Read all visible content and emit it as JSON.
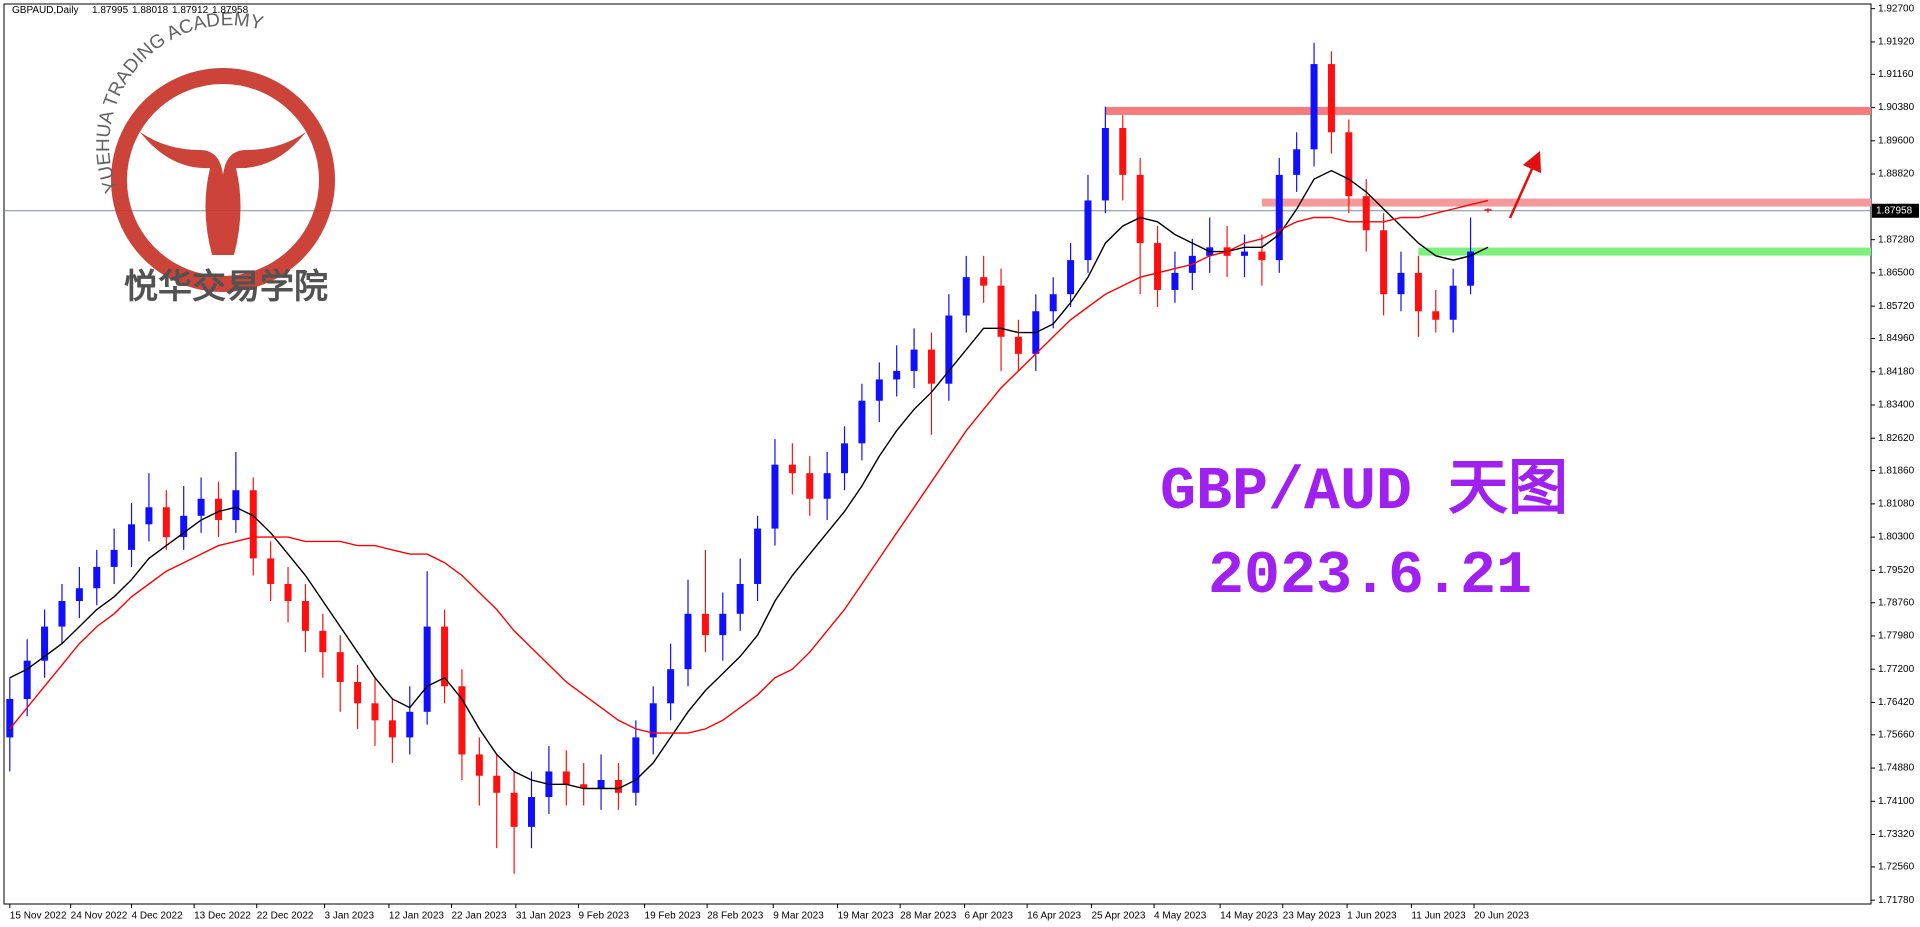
{
  "chart_data": {
    "type": "candlestick",
    "header": {
      "symbol": "GBPAUD,Daily"
    },
    "annotations": [
      "GBP/AUD 天图",
      "2023.6.21"
    ],
    "logo": {
      "name_en": "YUEHUA TRADING ACADEMY",
      "name_cn": "悦华交易学院"
    },
    "up_color": "#1010ff",
    "down_color": "#ff1010",
    "open": [
      1.756,
      1.765,
      1.774,
      1.782,
      1.788,
      1.791,
      1.796,
      1.8,
      1.806,
      1.81,
      1.803,
      1.808,
      1.812,
      1.807,
      1.814,
      1.798,
      1.792,
      1.788,
      1.781,
      1.776,
      1.769,
      1.764,
      1.76,
      1.756,
      1.762,
      1.782,
      1.768,
      1.752,
      1.747,
      1.743,
      1.735,
      1.742,
      1.748,
      1.745,
      1.744,
      1.746,
      1.743,
      1.756,
      1.764,
      1.772,
      1.785,
      1.78,
      1.785,
      1.792,
      1.805,
      1.82,
      1.818,
      1.812,
      1.818,
      1.825,
      1.835,
      1.84,
      1.842,
      1.847,
      1.839,
      1.855,
      1.864,
      1.862,
      1.85,
      1.846,
      1.856,
      1.86,
      1.868,
      1.882,
      1.899,
      1.888,
      1.872,
      1.861,
      1.865,
      1.869,
      1.871,
      1.869,
      1.87,
      1.868,
      1.888,
      1.894,
      1.914,
      1.898,
      1.883,
      1.875,
      1.86,
      1.865,
      1.856,
      1.854,
      1.862,
      1.87995
    ],
    "high": [
      1.77,
      1.779,
      1.786,
      1.792,
      1.796,
      1.8,
      1.805,
      1.811,
      1.818,
      1.814,
      1.815,
      1.817,
      1.816,
      1.823,
      1.817,
      1.802,
      1.796,
      1.792,
      1.785,
      1.78,
      1.773,
      1.77,
      1.765,
      1.768,
      1.795,
      1.786,
      1.772,
      1.756,
      1.752,
      1.748,
      1.748,
      1.754,
      1.753,
      1.75,
      1.752,
      1.75,
      1.76,
      1.768,
      1.778,
      1.793,
      1.8,
      1.79,
      1.798,
      1.808,
      1.826,
      1.825,
      1.822,
      1.823,
      1.829,
      1.839,
      1.844,
      1.848,
      1.852,
      1.851,
      1.86,
      1.869,
      1.869,
      1.866,
      1.854,
      1.86,
      1.864,
      1.872,
      1.888,
      1.904,
      1.902,
      1.892,
      1.876,
      1.87,
      1.873,
      1.878,
      1.876,
      1.874,
      1.874,
      1.892,
      1.898,
      1.919,
      1.917,
      1.901,
      1.887,
      1.879,
      1.87,
      1.869,
      1.861,
      1.866,
      1.878,
      1.88018
    ],
    "low": [
      1.748,
      1.761,
      1.77,
      1.778,
      1.784,
      1.787,
      1.792,
      1.796,
      1.802,
      1.8,
      1.8,
      1.804,
      1.803,
      1.804,
      1.794,
      1.788,
      1.783,
      1.776,
      1.77,
      1.762,
      1.758,
      1.754,
      1.75,
      1.752,
      1.759,
      1.764,
      1.746,
      1.74,
      1.73,
      1.724,
      1.73,
      1.738,
      1.74,
      1.74,
      1.739,
      1.739,
      1.74,
      1.752,
      1.76,
      1.768,
      1.776,
      1.774,
      1.781,
      1.788,
      1.801,
      1.813,
      1.808,
      1.807,
      1.814,
      1.821,
      1.83,
      1.836,
      1.838,
      1.827,
      1.835,
      1.851,
      1.858,
      1.842,
      1.842,
      1.842,
      1.852,
      1.857,
      1.865,
      1.879,
      1.882,
      1.86,
      1.857,
      1.858,
      1.861,
      1.865,
      1.864,
      1.864,
      1.862,
      1.865,
      1.884,
      1.89,
      1.893,
      1.879,
      1.87,
      1.855,
      1.856,
      1.85,
      1.851,
      1.851,
      1.86,
      1.87912
    ],
    "close": [
      1.765,
      1.774,
      1.782,
      1.788,
      1.791,
      1.796,
      1.8,
      1.806,
      1.81,
      1.803,
      1.808,
      1.812,
      1.807,
      1.814,
      1.798,
      1.792,
      1.788,
      1.781,
      1.776,
      1.769,
      1.764,
      1.76,
      1.756,
      1.762,
      1.782,
      1.768,
      1.752,
      1.747,
      1.743,
      1.735,
      1.742,
      1.748,
      1.745,
      1.744,
      1.746,
      1.743,
      1.756,
      1.764,
      1.772,
      1.785,
      1.78,
      1.785,
      1.792,
      1.805,
      1.82,
      1.818,
      1.812,
      1.818,
      1.825,
      1.835,
      1.84,
      1.842,
      1.847,
      1.839,
      1.855,
      1.864,
      1.862,
      1.85,
      1.846,
      1.856,
      1.86,
      1.868,
      1.882,
      1.899,
      1.888,
      1.872,
      1.861,
      1.865,
      1.869,
      1.871,
      1.869,
      1.87,
      1.868,
      1.888,
      1.894,
      1.914,
      1.898,
      1.883,
      1.875,
      1.86,
      1.865,
      1.856,
      1.854,
      1.862,
      1.87,
      1.87958
    ],
    "moving_averages": [
      {
        "color": "#000000",
        "values": [
          1.77,
          1.772,
          1.775,
          1.778,
          1.782,
          1.786,
          1.789,
          1.793,
          1.798,
          1.801,
          1.804,
          1.807,
          1.809,
          1.81,
          1.808,
          1.804,
          1.799,
          1.794,
          1.788,
          1.782,
          1.776,
          1.77,
          1.765,
          1.763,
          1.768,
          1.77,
          1.765,
          1.758,
          1.752,
          1.748,
          1.746,
          1.745,
          1.745,
          1.744,
          1.744,
          1.744,
          1.746,
          1.75,
          1.756,
          1.762,
          1.767,
          1.771,
          1.775,
          1.78,
          1.788,
          1.794,
          1.799,
          1.804,
          1.809,
          1.815,
          1.822,
          1.828,
          1.833,
          1.837,
          1.842,
          1.847,
          1.852,
          1.852,
          1.851,
          1.851,
          1.853,
          1.858,
          1.864,
          1.872,
          1.876,
          1.878,
          1.877,
          1.874,
          1.872,
          1.87,
          1.87,
          1.871,
          1.871,
          1.874,
          1.88,
          1.887,
          1.889,
          1.887,
          1.884,
          1.88,
          1.876,
          1.872,
          1.869,
          1.868,
          1.869,
          1.871
        ]
      },
      {
        "color": "#ff0000",
        "values": [
          1.758,
          1.763,
          1.768,
          1.773,
          1.778,
          1.782,
          1.785,
          1.789,
          1.792,
          1.795,
          1.797,
          1.799,
          1.801,
          1.802,
          1.803,
          1.803,
          1.803,
          1.802,
          1.802,
          1.802,
          1.801,
          1.801,
          1.8,
          1.799,
          1.799,
          1.797,
          1.794,
          1.79,
          1.786,
          1.781,
          1.777,
          1.773,
          1.769,
          1.766,
          1.763,
          1.76,
          1.758,
          1.757,
          1.757,
          1.757,
          1.758,
          1.76,
          1.763,
          1.766,
          1.77,
          1.772,
          1.776,
          1.781,
          1.786,
          1.792,
          1.798,
          1.804,
          1.81,
          1.816,
          1.822,
          1.828,
          1.833,
          1.838,
          1.842,
          1.846,
          1.85,
          1.854,
          1.857,
          1.86,
          1.862,
          1.864,
          1.865,
          1.866,
          1.867,
          1.869,
          1.87,
          1.872,
          1.873,
          1.875,
          1.877,
          1.878,
          1.878,
          1.877,
          1.877,
          1.877,
          1.878,
          1.878,
          1.879,
          1.88,
          1.881,
          1.882
        ]
      }
    ],
    "zones": [
      {
        "value": 1.903,
        "from": 63,
        "color": "#f47c7c"
      },
      {
        "value": 1.8815,
        "from": 72,
        "color": "#f49a9a"
      },
      {
        "value": 1.87,
        "from": 81,
        "color": "#7ef07e"
      }
    ],
    "ylim": [
      1.7169,
      1.9281
    ],
    "yticks": [
      {
        "value": 1.927,
        "label": "1.92700"
      },
      {
        "value": 1.9192,
        "label": "1.91920"
      },
      {
        "value": 1.9116,
        "label": "1.91160"
      },
      {
        "value": 1.9038,
        "label": "1.90380"
      },
      {
        "value": 1.896,
        "label": "1.89600"
      },
      {
        "value": 1.8882,
        "label": "1.88820"
      },
      {
        "value": 1.8728,
        "label": "1.87280"
      },
      {
        "value": 1.865,
        "label": "1.86500"
      },
      {
        "value": 1.8572,
        "label": "1.85720"
      },
      {
        "value": 1.8496,
        "label": "1.84960"
      },
      {
        "value": 1.8418,
        "label": "1.84180"
      },
      {
        "value": 1.834,
        "label": "1.83400"
      },
      {
        "value": 1.8262,
        "label": "1.82620"
      },
      {
        "value": 1.8186,
        "label": "1.81860"
      },
      {
        "value": 1.8108,
        "label": "1.81080"
      },
      {
        "value": 1.803,
        "label": "1.80300"
      },
      {
        "value": 1.7952,
        "label": "1.79520"
      },
      {
        "value": 1.7876,
        "label": "1.78760"
      },
      {
        "value": 1.7798,
        "label": "1.77980"
      },
      {
        "value": 1.772,
        "label": "1.77200"
      },
      {
        "value": 1.7642,
        "label": "1.76420"
      },
      {
        "value": 1.7566,
        "label": "1.75660"
      },
      {
        "value": 1.7488,
        "label": "1.74880"
      },
      {
        "value": 1.741,
        "label": "1.74100"
      },
      {
        "value": 1.7332,
        "label": "1.73320"
      },
      {
        "value": 1.7256,
        "label": "1.72560"
      },
      {
        "value": 1.7178,
        "label": "1.71780"
      }
    ],
    "xticks": [
      {
        "value": 0,
        "label": "15 Nov 2022"
      },
      {
        "value": 3.5,
        "label": "24 Nov 2022"
      },
      {
        "value": 7,
        "label": "4 Dec 2022"
      },
      {
        "value": 10.6,
        "label": "13 Dec 2022"
      },
      {
        "value": 14.2,
        "label": "22 Dec 2022"
      },
      {
        "value": 18.1,
        "label": "3 Jan 2023"
      },
      {
        "value": 21.8,
        "label": "12 Jan 2023"
      },
      {
        "value": 25.4,
        "label": "22 Jan 2023"
      },
      {
        "value": 29.1,
        "label": "31 Jan 2023"
      },
      {
        "value": 32.7,
        "label": "9 Feb 2023"
      },
      {
        "value": 36.5,
        "label": "19 Feb 2023"
      },
      {
        "value": 40.1,
        "label": "28 Feb 2023"
      },
      {
        "value": 43.9,
        "label": "9 Mar 2023"
      },
      {
        "value": 47.6,
        "label": "19 Mar 2023"
      },
      {
        "value": 51.2,
        "label": "28 Mar 2023"
      },
      {
        "value": 54.9,
        "label": "6 Apr 2023"
      },
      {
        "value": 58.5,
        "label": "16 Apr 2023"
      },
      {
        "value": 62.2,
        "label": "25 Apr 2023"
      },
      {
        "value": 65.8,
        "label": "4 May 2023"
      },
      {
        "value": 69.6,
        "label": "14 May 2023"
      },
      {
        "value": 73.2,
        "label": "23 May 2023"
      },
      {
        "value": 76.9,
        "label": "1 Jun 2023"
      },
      {
        "value": 80.6,
        "label": "11 Jun 2023"
      },
      {
        "value": 84.2,
        "label": "20 Jun 2023"
      }
    ]
  }
}
